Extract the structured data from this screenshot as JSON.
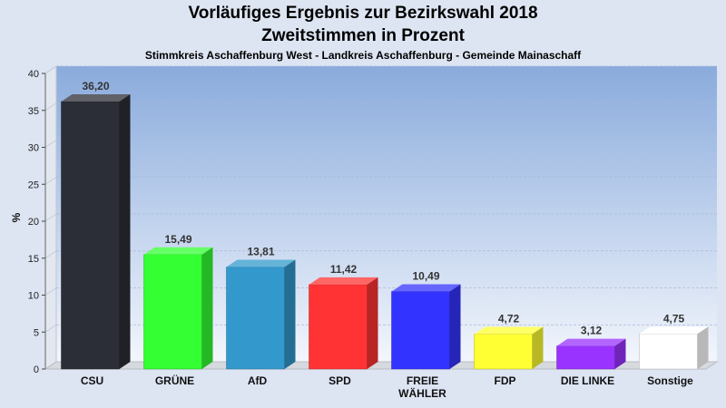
{
  "title": "Vorläufiges Ergebnis zur Bezirkswahl 2018",
  "subtitle": "Zweitstimmen in Prozent",
  "subtitle2": "Stimmkreis Aschaffenburg West - Landkreis Aschaffenburg - Gemeinde Mainaschaff",
  "chart_data": {
    "type": "bar",
    "title": "Vorläufiges Ergebnis zur Bezirkswahl 2018",
    "subtitle": "Zweitstimmen in Prozent",
    "ylabel": "%",
    "xlabel": "",
    "ylim": [
      0,
      40
    ],
    "yticks": [
      0,
      5,
      10,
      15,
      20,
      25,
      30,
      35,
      40
    ],
    "grid": true,
    "categories": [
      "CSU",
      "GRÜNE",
      "AfD",
      "SPD",
      "FREIE WÄHLER",
      "FDP",
      "DIE LINKE",
      "Sonstige"
    ],
    "category_lines": [
      [
        "CSU"
      ],
      [
        "GRÜNE"
      ],
      [
        "AfD"
      ],
      [
        "SPD"
      ],
      [
        "FREIE",
        "WÄHLER"
      ],
      [
        "FDP"
      ],
      [
        "DIE LINKE"
      ],
      [
        "Sonstige"
      ]
    ],
    "values": [
      36.2,
      15.49,
      13.81,
      11.42,
      10.49,
      4.72,
      3.12,
      4.75
    ],
    "value_labels": [
      "36,20",
      "15,49",
      "13,81",
      "11,42",
      "10,49",
      "4,72",
      "3,12",
      "4,75"
    ],
    "colors": [
      "#2b2e36",
      "#33ff33",
      "#3399cc",
      "#ff3333",
      "#3333ff",
      "#ffff33",
      "#9933ff",
      "#ffffff"
    ]
  }
}
